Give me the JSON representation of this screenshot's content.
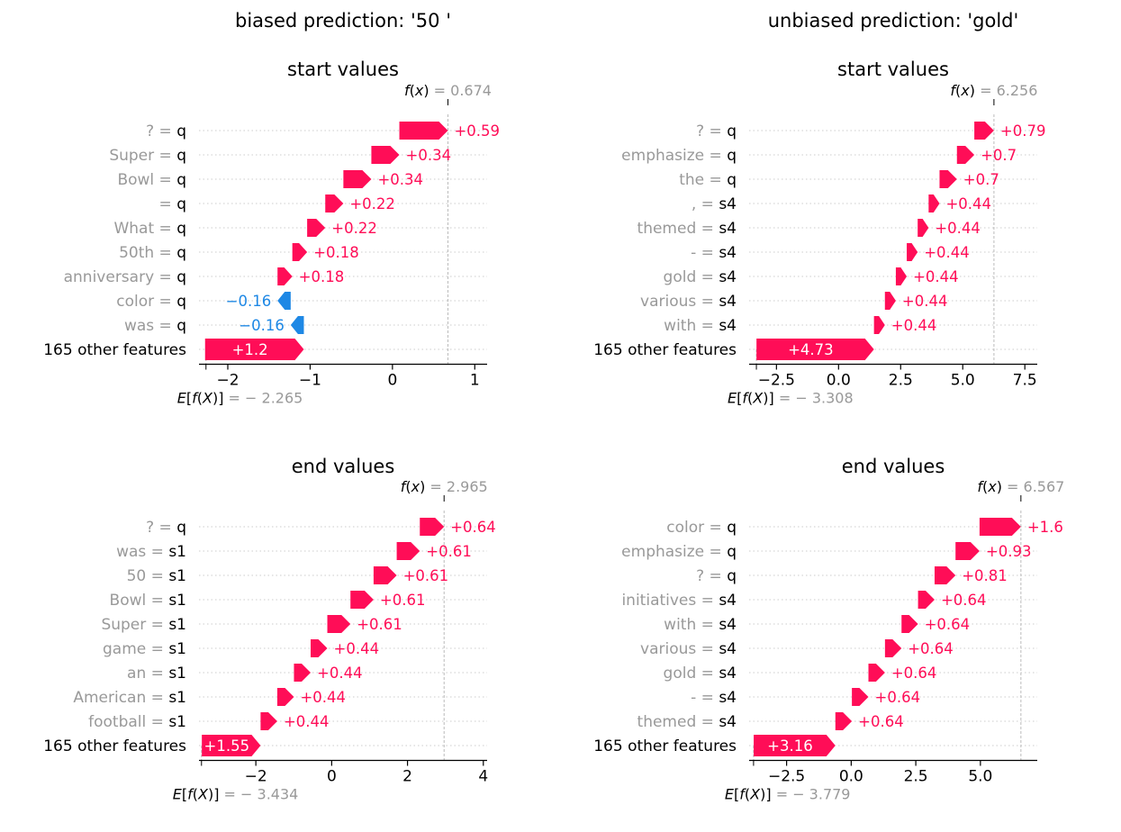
{
  "column_titles": [
    "biased prediction: '50 '",
    "unbiased prediction: 'gold'"
  ],
  "colors": {
    "positive": "#ff0d57",
    "negative": "#1e88e5",
    "grey_text": "#999999",
    "axis": "#000000",
    "guide": "#cccccc"
  },
  "chart_data": [
    {
      "type": "bar",
      "subtype": "waterfall",
      "title": "start values",
      "fx_value": "0.674",
      "fx": 0.674,
      "ex_value": "− 2.265",
      "ex": -2.265,
      "xlim": [
        -2.35,
        1.15
      ],
      "xticks": [
        -2,
        -1,
        0,
        1
      ],
      "xtick_labels": [
        "−2",
        "−1",
        "0",
        "1"
      ],
      "features": [
        {
          "name": "? ",
          "value": "q",
          "shap": 0.59,
          "label": "+0.59"
        },
        {
          "name": "Super ",
          "value": "q",
          "shap": 0.34,
          "label": "+0.34"
        },
        {
          "name": "Bowl",
          "value": "q",
          "shap": 0.34,
          "label": "+0.34"
        },
        {
          "name": "",
          "value": "q",
          "shap": 0.22,
          "label": "+0.22"
        },
        {
          "name": "What ",
          "value": "q",
          "shap": 0.22,
          "label": "+0.22"
        },
        {
          "name": "50th ",
          "value": "q",
          "shap": 0.18,
          "label": "+0.18"
        },
        {
          "name": "anniversary",
          "value": "q",
          "shap": 0.18,
          "label": "+0.18"
        },
        {
          "name": "color ",
          "value": "q",
          "shap": -0.16,
          "label": "−0.16"
        },
        {
          "name": "was ",
          "value": "q",
          "shap": -0.16,
          "label": "−0.16"
        },
        {
          "name": "165 other features",
          "value": "",
          "shap": 1.2,
          "label": "+1.2",
          "other": true
        }
      ]
    },
    {
      "type": "bar",
      "subtype": "waterfall",
      "title": "start values",
      "fx_value": "6.256",
      "fx": 6.256,
      "ex_value": "− 3.308",
      "ex": -3.308,
      "xlim": [
        -3.6,
        8.0
      ],
      "xticks": [
        -2.5,
        0,
        2.5,
        5,
        7.5
      ],
      "xtick_labels": [
        "−2.5",
        "0.0",
        "2.5",
        "5.0",
        "7.5"
      ],
      "features": [
        {
          "name": "? ",
          "value": "q",
          "shap": 0.79,
          "label": "+0.79"
        },
        {
          "name": "emphasize ",
          "value": "q",
          "shap": 0.7,
          "label": "+0.7"
        },
        {
          "name": "the ",
          "value": "q",
          "shap": 0.7,
          "label": "+0.7"
        },
        {
          "name": ", ",
          "value": "s4",
          "shap": 0.44,
          "label": "+0.44"
        },
        {
          "name": "themed ",
          "value": "s4",
          "shap": 0.44,
          "label": "+0.44"
        },
        {
          "name": "- ",
          "value": "s4",
          "shap": 0.44,
          "label": "+0.44"
        },
        {
          "name": "gold",
          "value": "s4",
          "shap": 0.44,
          "label": "+0.44"
        },
        {
          "name": "various ",
          "value": "s4",
          "shap": 0.44,
          "label": "+0.44"
        },
        {
          "name": "with ",
          "value": "s4",
          "shap": 0.44,
          "label": "+0.44"
        },
        {
          "name": "165 other features",
          "value": "",
          "shap": 4.73,
          "label": "+4.73",
          "other": true
        }
      ]
    },
    {
      "type": "bar",
      "subtype": "waterfall",
      "title": "end values",
      "fx_value": "2.965",
      "fx": 2.965,
      "ex_value": "− 3.434",
      "ex": -3.434,
      "xlim": [
        -3.5,
        4.1
      ],
      "xticks": [
        -2,
        0,
        2,
        4
      ],
      "xtick_labels": [
        "−2",
        "0",
        "2",
        "4"
      ],
      "features": [
        {
          "name": "? ",
          "value": "q",
          "shap": 0.64,
          "label": "+0.64"
        },
        {
          "name": "was ",
          "value": "s1",
          "shap": 0.61,
          "label": "+0.61"
        },
        {
          "name": "50 ",
          "value": "s1",
          "shap": 0.61,
          "label": "+0.61"
        },
        {
          "name": "Bowl ",
          "value": "s1",
          "shap": 0.61,
          "label": "+0.61"
        },
        {
          "name": "Super ",
          "value": "s1",
          "shap": 0.61,
          "label": "+0.61"
        },
        {
          "name": "game ",
          "value": "s1",
          "shap": 0.44,
          "label": "+0.44"
        },
        {
          "name": "an ",
          "value": "s1",
          "shap": 0.44,
          "label": "+0.44"
        },
        {
          "name": "American ",
          "value": "s1",
          "shap": 0.44,
          "label": "+0.44"
        },
        {
          "name": "football ",
          "value": "s1",
          "shap": 0.44,
          "label": "+0.44"
        },
        {
          "name": "165 other features",
          "value": "",
          "shap": 1.55,
          "label": "+1.55",
          "other": true
        }
      ]
    },
    {
      "type": "bar",
      "subtype": "waterfall",
      "title": "end values",
      "fx_value": "6.567",
      "fx": 6.567,
      "ex_value": "− 3.779",
      "ex": -3.779,
      "xlim": [
        -3.95,
        7.2
      ],
      "xticks": [
        -2.5,
        0,
        2.5,
        5
      ],
      "xtick_labels": [
        "−2.5",
        "0.0",
        "2.5",
        "5.0"
      ],
      "features": [
        {
          "name": "color ",
          "value": "q",
          "shap": 1.6,
          "label": "+1.6"
        },
        {
          "name": "emphasize ",
          "value": "q",
          "shap": 0.93,
          "label": "+0.93"
        },
        {
          "name": "? ",
          "value": "q",
          "shap": 0.81,
          "label": "+0.81"
        },
        {
          "name": "initiatives ",
          "value": "s4",
          "shap": 0.64,
          "label": "+0.64"
        },
        {
          "name": "with ",
          "value": "s4",
          "shap": 0.64,
          "label": "+0.64"
        },
        {
          "name": "various ",
          "value": "s4",
          "shap": 0.64,
          "label": "+0.64"
        },
        {
          "name": "gold ",
          "value": "s4",
          "shap": 0.64,
          "label": "+0.64"
        },
        {
          "name": "- ",
          "value": "s4",
          "shap": 0.64,
          "label": "+0.64"
        },
        {
          "name": "themed ",
          "value": "s4",
          "shap": 0.64,
          "label": "+0.64"
        },
        {
          "name": "165 other features",
          "value": "",
          "shap": 3.16,
          "label": "+3.16",
          "other": true
        }
      ]
    }
  ]
}
